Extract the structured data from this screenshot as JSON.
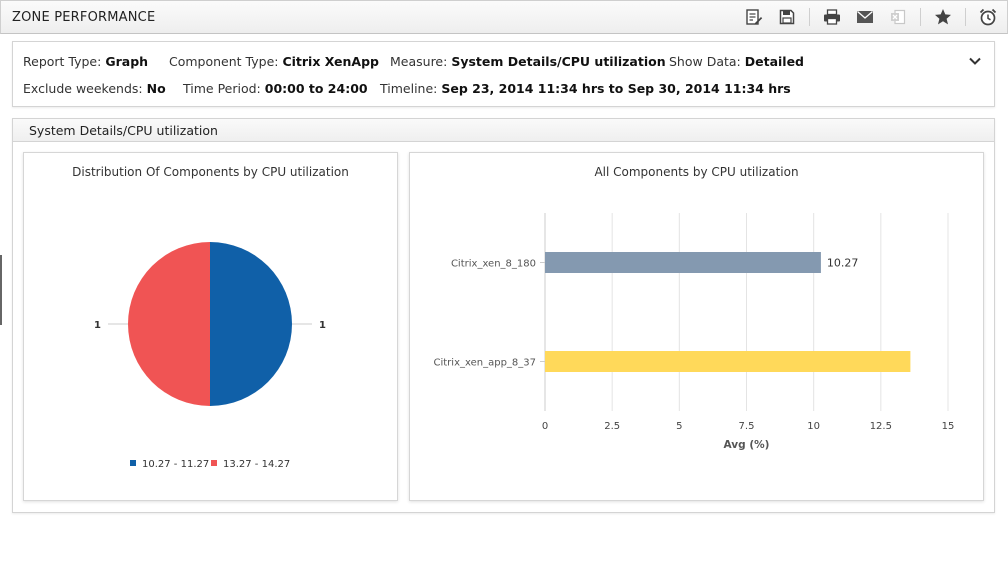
{
  "header": {
    "title": "ZONE PERFORMANCE",
    "tools": [
      {
        "name": "edit-report-icon"
      },
      {
        "name": "save-icon"
      },
      {
        "name": "print-icon"
      },
      {
        "name": "email-icon"
      },
      {
        "name": "export-excel-icon"
      },
      {
        "name": "favorite-star-icon"
      },
      {
        "name": "schedule-alarm-icon"
      }
    ]
  },
  "filters": {
    "report_type": {
      "label": "Report Type:",
      "value": "Graph"
    },
    "component_type": {
      "label": "Component Type:",
      "value": "Citrix XenApp"
    },
    "measure": {
      "label": "Measure:",
      "value": "System Details/CPU utilization"
    },
    "show_data": {
      "label": "Show Data:",
      "value": "Detailed"
    },
    "exclude_weekends": {
      "label": "Exclude weekends:",
      "value": "No"
    },
    "time_period": {
      "label": "Time Period:",
      "value": "00:00 to 24:00"
    },
    "timeline": {
      "label": "Timeline:",
      "value": "Sep 23, 2014 11:34 hrs to Sep 30, 2014 11:34 hrs"
    }
  },
  "section": {
    "title": "System Details/CPU utilization"
  },
  "chart_data": [
    {
      "type": "pie",
      "title": "Distribution Of Components by CPU utilization",
      "slices": [
        {
          "label": "10.27 - 11.27",
          "value": 1,
          "data_label": "1",
          "color": "#1060a8"
        },
        {
          "label": "13.27 - 14.27",
          "value": 1,
          "data_label": "1",
          "color": "#f05454"
        }
      ],
      "legend": "bottom"
    },
    {
      "type": "bar",
      "orientation": "horizontal",
      "title": "All Components by CPU utilization",
      "categories": [
        "Citrix_xen_8_180",
        "Citrix_xen_app_8_37"
      ],
      "values": [
        10.27,
        13.6
      ],
      "data_labels": [
        "10.27",
        ""
      ],
      "colors": [
        "#8499b0",
        "#ffd95a"
      ],
      "xlabel": "Avg (%)",
      "xlim": [
        0,
        15
      ],
      "xticks": [
        "0",
        "2.5",
        "5",
        "7.5",
        "10",
        "12.5",
        "15"
      ],
      "grid": true
    }
  ]
}
